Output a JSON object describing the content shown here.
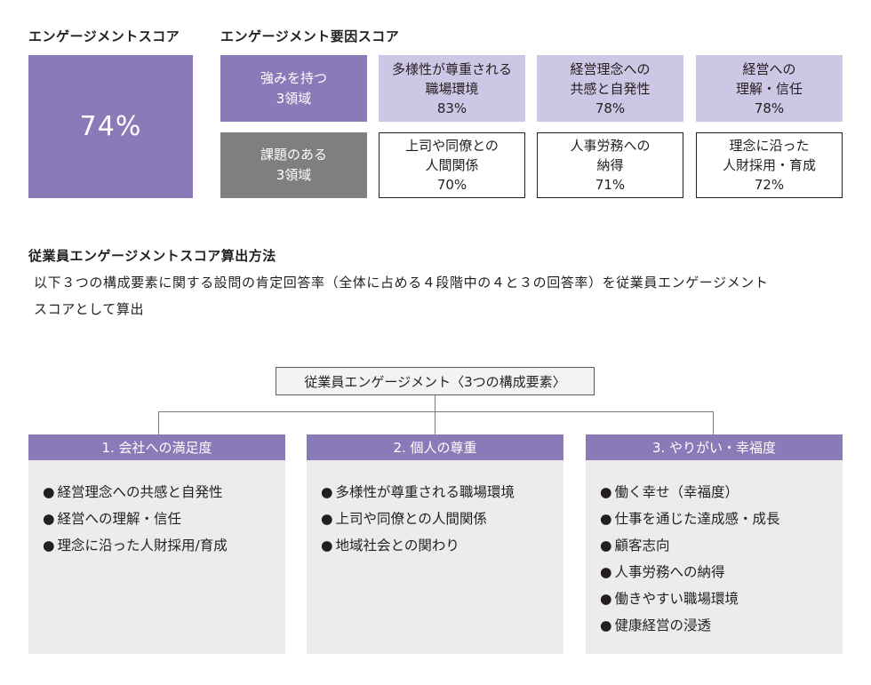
{
  "engagement_score": {
    "heading": "エンゲージメントスコア",
    "value": "74%"
  },
  "factor_scores": {
    "heading": "エンゲージメント要因スコア",
    "strong_label": [
      "強みを持つ",
      "3領域"
    ],
    "weak_label": [
      "課題のある",
      "3領域"
    ],
    "strong": [
      {
        "lines": [
          "多様性が尊重される",
          "職場環境"
        ],
        "value": "83%"
      },
      {
        "lines": [
          "経営理念への",
          "共感と自発性"
        ],
        "value": "78%"
      },
      {
        "lines": [
          "経営への",
          "理解・信任"
        ],
        "value": "78%"
      }
    ],
    "weak": [
      {
        "lines": [
          "上司や同僚との",
          "人間関係"
        ],
        "value": "70%"
      },
      {
        "lines": [
          "人事労務への",
          "納得"
        ],
        "value": "71%"
      },
      {
        "lines": [
          "理念に沿った",
          "人財採用・育成"
        ],
        "value": "72%"
      }
    ]
  },
  "method": {
    "heading": "従業員エンゲージメントスコア算出方法",
    "line1": "以下３つの構成要素に関する設問の肯定回答率（全体に占める４段階中の４と３の回答率）を従業員エンゲージメント",
    "line2": "スコアとして算出"
  },
  "diagram": {
    "root": "従業員エンゲージメント〈3つの構成要素〉",
    "bullet": "●",
    "categories": [
      {
        "title": "1. 会社への満足度",
        "items": [
          "経営理念への共感と自発性",
          "経営への理解・信任",
          "理念に沿った人財採用/育成"
        ]
      },
      {
        "title": "2. 個人の尊重",
        "items": [
          "多様性が尊重される職場環境",
          "上司や同僚との人間関係",
          "地域社会との関わり"
        ]
      },
      {
        "title": "3. やりがい・幸福度",
        "items": [
          "働く幸せ（幸福度）",
          "仕事を通じた達成感・成長",
          "顧客志向",
          "人事労務への納得",
          "働きやすい職場環境",
          "健康経営の浸透"
        ]
      }
    ]
  },
  "colors": {
    "purple": "#8a7bb8",
    "light_purple": "#cdc6e4",
    "gray": "#7f7f7f",
    "panel": "#ececec"
  }
}
